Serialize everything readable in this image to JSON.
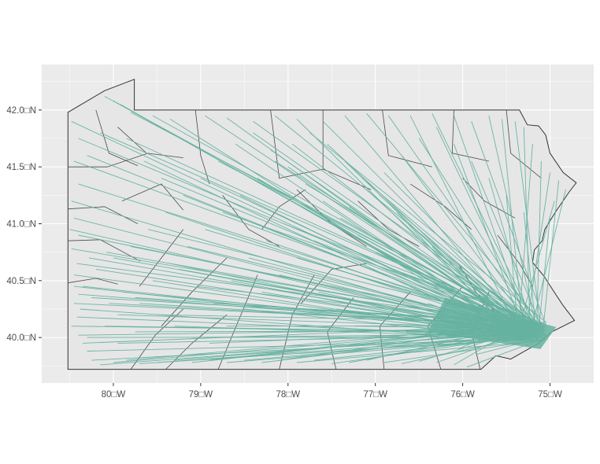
{
  "map": {
    "colors": {
      "panel_background": "#ebebeb",
      "grid_line": "#ffffff",
      "state_fill": "#e6e6e6",
      "boundary": "#333333",
      "flow_line": "#66b2a0",
      "tick_text": "#4d4d4d"
    },
    "x_axis": {
      "ticks": [
        {
          "value": -80,
          "label": "80□W"
        },
        {
          "value": -79,
          "label": "79□W"
        },
        {
          "value": -78,
          "label": "78□W"
        },
        {
          "value": -77,
          "label": "77□W"
        },
        {
          "value": -76,
          "label": "76□W"
        },
        {
          "value": -75,
          "label": "75□W"
        }
      ],
      "range": [
        -80.82,
        -74.5
      ]
    },
    "y_axis": {
      "ticks": [
        {
          "value": 40.0,
          "label": "40.0□N"
        },
        {
          "value": 40.5,
          "label": "40.5□N"
        },
        {
          "value": 41.0,
          "label": "41.0□N"
        },
        {
          "value": 41.5,
          "label": "41.5□N"
        },
        {
          "value": 42.0,
          "label": "42.0□N"
        }
      ],
      "range": [
        39.6,
        42.4
      ]
    },
    "destination": {
      "lon": -75.2,
      "lat": 40.05
    },
    "state_outline": [
      [
        -80.52,
        39.72
      ],
      [
        -75.79,
        39.72
      ],
      [
        -75.62,
        39.84
      ],
      [
        -75.45,
        39.81
      ],
      [
        -75.13,
        39.95
      ],
      [
        -74.98,
        40.05
      ],
      [
        -74.72,
        40.15
      ],
      [
        -74.85,
        40.28
      ],
      [
        -74.97,
        40.42
      ],
      [
        -75.07,
        40.54
      ],
      [
        -75.2,
        40.66
      ],
      [
        -75.18,
        40.77
      ],
      [
        -75.09,
        40.85
      ],
      [
        -75.06,
        40.95
      ],
      [
        -74.94,
        41.1
      ],
      [
        -74.78,
        41.28
      ],
      [
        -74.7,
        41.36
      ],
      [
        -74.85,
        41.45
      ],
      [
        -75.0,
        41.62
      ],
      [
        -75.05,
        41.78
      ],
      [
        -75.13,
        41.86
      ],
      [
        -75.26,
        41.87
      ],
      [
        -75.35,
        42.0
      ],
      [
        -79.76,
        42.0
      ],
      [
        -79.76,
        42.27
      ],
      [
        -80.1,
        42.17
      ],
      [
        -80.52,
        41.98
      ],
      [
        -80.52,
        39.72
      ]
    ],
    "county_lines": [
      [
        [
          -80.52,
          40.48
        ],
        [
          -80.2,
          40.52
        ],
        [
          -79.95,
          40.47
        ]
      ],
      [
        [
          -80.52,
          40.85
        ],
        [
          -80.15,
          40.86
        ],
        [
          -79.69,
          40.67
        ]
      ],
      [
        [
          -80.52,
          41.13
        ],
        [
          -80.1,
          41.15
        ],
        [
          -79.72,
          41.0
        ]
      ],
      [
        [
          -80.52,
          41.5
        ],
        [
          -80.07,
          41.5
        ],
        [
          -79.6,
          41.62
        ]
      ],
      [
        [
          -80.2,
          42.0
        ],
        [
          -80.05,
          41.62
        ],
        [
          -79.72,
          41.51
        ]
      ],
      [
        [
          -79.95,
          41.85
        ],
        [
          -79.62,
          41.62
        ],
        [
          -79.2,
          41.58
        ]
      ],
      [
        [
          -79.06,
          42.0
        ],
        [
          -79.0,
          41.6
        ],
        [
          -78.9,
          41.35
        ]
      ],
      [
        [
          -78.2,
          42.0
        ],
        [
          -78.1,
          41.4
        ],
        [
          -77.6,
          41.48
        ]
      ],
      [
        [
          -77.6,
          42.0
        ],
        [
          -77.6,
          41.48
        ],
        [
          -77.05,
          41.3
        ]
      ],
      [
        [
          -76.92,
          42.0
        ],
        [
          -76.85,
          41.6
        ],
        [
          -76.35,
          41.5
        ]
      ],
      [
        [
          -76.1,
          42.0
        ],
        [
          -76.12,
          41.62
        ],
        [
          -75.7,
          41.55
        ]
      ],
      [
        [
          -75.5,
          42.0
        ],
        [
          -75.45,
          41.62
        ],
        [
          -75.1,
          41.4
        ]
      ],
      [
        [
          -79.9,
          41.2
        ],
        [
          -79.45,
          41.35
        ],
        [
          -79.2,
          41.12
        ]
      ],
      [
        [
          -79.7,
          40.45
        ],
        [
          -79.45,
          40.7
        ],
        [
          -79.2,
          40.95
        ]
      ],
      [
        [
          -79.45,
          40.1
        ],
        [
          -79.1,
          40.4
        ],
        [
          -78.7,
          40.7
        ]
      ],
      [
        [
          -79.8,
          39.72
        ],
        [
          -79.52,
          40.02
        ],
        [
          -79.2,
          40.25
        ]
      ],
      [
        [
          -79.4,
          39.72
        ],
        [
          -79.1,
          39.95
        ],
        [
          -78.7,
          40.2
        ]
      ],
      [
        [
          -78.8,
          39.72
        ],
        [
          -78.62,
          40.05
        ],
        [
          -78.35,
          40.55
        ]
      ],
      [
        [
          -78.1,
          39.72
        ],
        [
          -77.95,
          40.2
        ],
        [
          -77.7,
          40.55
        ]
      ],
      [
        [
          -77.45,
          39.72
        ],
        [
          -77.55,
          40.05
        ],
        [
          -77.25,
          40.35
        ]
      ],
      [
        [
          -76.9,
          39.72
        ],
        [
          -76.95,
          40.1
        ],
        [
          -76.6,
          40.4
        ]
      ],
      [
        [
          -76.25,
          39.72
        ],
        [
          -76.4,
          40.1
        ],
        [
          -76.0,
          40.45
        ]
      ],
      [
        [
          -75.8,
          39.72
        ],
        [
          -75.9,
          40.05
        ],
        [
          -75.7,
          40.4
        ]
      ],
      [
        [
          -78.75,
          41.25
        ],
        [
          -78.45,
          40.95
        ],
        [
          -78.1,
          40.8
        ]
      ],
      [
        [
          -77.9,
          41.3
        ],
        [
          -77.5,
          41.0
        ],
        [
          -77.1,
          40.8
        ]
      ],
      [
        [
          -77.2,
          41.2
        ],
        [
          -76.85,
          40.95
        ],
        [
          -76.5,
          40.8
        ]
      ],
      [
        [
          -76.6,
          41.35
        ],
        [
          -76.2,
          41.15
        ],
        [
          -75.9,
          40.95
        ]
      ],
      [
        [
          -76.0,
          41.4
        ],
        [
          -75.75,
          41.2
        ],
        [
          -75.4,
          41.05
        ]
      ],
      [
        [
          -75.6,
          40.9
        ],
        [
          -75.35,
          40.65
        ],
        [
          -75.2,
          40.45
        ]
      ],
      [
        [
          -76.05,
          40.65
        ],
        [
          -75.85,
          40.4
        ],
        [
          -75.6,
          40.2
        ]
      ],
      [
        [
          -77.85,
          40.3
        ],
        [
          -77.5,
          40.6
        ],
        [
          -77.1,
          40.65
        ]
      ],
      [
        [
          -78.3,
          40.95
        ],
        [
          -78.1,
          41.15
        ],
        [
          -77.8,
          41.3
        ]
      ]
    ],
    "flow_origins": [
      [
        -80.1,
        42.12
      ],
      [
        -80.0,
        42.08
      ],
      [
        -79.92,
        42.05
      ],
      [
        -79.8,
        41.98
      ],
      [
        -79.55,
        41.95
      ],
      [
        -79.35,
        41.92
      ],
      [
        -78.95,
        41.95
      ],
      [
        -78.7,
        41.93
      ],
      [
        -78.4,
        41.9
      ],
      [
        -78.15,
        41.95
      ],
      [
        -77.9,
        41.92
      ],
      [
        -77.6,
        41.9
      ],
      [
        -77.35,
        41.95
      ],
      [
        -77.1,
        41.97
      ],
      [
        -76.85,
        41.95
      ],
      [
        -76.6,
        41.95
      ],
      [
        -76.35,
        41.97
      ],
      [
        -76.1,
        41.95
      ],
      [
        -75.9,
        41.9
      ],
      [
        -75.7,
        41.95
      ],
      [
        -75.55,
        41.92
      ],
      [
        -75.4,
        41.9
      ],
      [
        -75.3,
        41.85
      ],
      [
        -75.2,
        41.7
      ],
      [
        -75.1,
        41.55
      ],
      [
        -75.0,
        41.45
      ],
      [
        -74.9,
        41.38
      ],
      [
        -74.82,
        41.3
      ],
      [
        -74.95,
        41.2
      ],
      [
        -75.0,
        41.05
      ],
      [
        -80.48,
        41.9
      ],
      [
        -80.4,
        41.75
      ],
      [
        -80.45,
        41.55
      ],
      [
        -80.4,
        41.35
      ],
      [
        -80.48,
        41.2
      ],
      [
        -80.45,
        41.05
      ],
      [
        -80.4,
        40.9
      ],
      [
        -80.48,
        40.78
      ],
      [
        -80.42,
        40.65
      ],
      [
        -80.45,
        40.55
      ],
      [
        -80.35,
        40.45
      ],
      [
        -80.4,
        40.38
      ],
      [
        -80.45,
        40.3
      ],
      [
        -80.38,
        40.25
      ],
      [
        -80.42,
        40.18
      ],
      [
        -80.48,
        40.1
      ],
      [
        -80.4,
        40.02
      ],
      [
        -80.35,
        39.95
      ],
      [
        -80.3,
        39.88
      ],
      [
        -80.25,
        39.8
      ],
      [
        -80.15,
        39.76
      ],
      [
        -80.0,
        39.78
      ],
      [
        -79.85,
        39.8
      ],
      [
        -79.7,
        39.77
      ],
      [
        -79.5,
        39.78
      ],
      [
        -79.3,
        39.8
      ],
      [
        -79.1,
        39.78
      ],
      [
        -78.9,
        39.8
      ],
      [
        -78.7,
        39.78
      ],
      [
        -78.5,
        39.8
      ],
      [
        -78.3,
        39.78
      ],
      [
        -78.1,
        39.8
      ],
      [
        -77.9,
        39.78
      ],
      [
        -77.7,
        39.8
      ],
      [
        -77.5,
        39.77
      ],
      [
        -77.3,
        39.78
      ],
      [
        -77.1,
        39.8
      ],
      [
        -76.9,
        39.78
      ],
      [
        -76.7,
        39.77
      ],
      [
        -76.5,
        39.79
      ],
      [
        -76.3,
        39.78
      ],
      [
        -76.1,
        39.76
      ],
      [
        -75.95,
        39.74
      ],
      [
        -80.2,
        40.6
      ],
      [
        -80.0,
        40.7
      ],
      [
        -79.8,
        40.8
      ],
      [
        -79.6,
        40.95
      ],
      [
        -79.4,
        41.1
      ],
      [
        -79.2,
        41.25
      ],
      [
        -79.0,
        41.4
      ],
      [
        -78.8,
        41.55
      ],
      [
        -78.6,
        41.7
      ],
      [
        -78.4,
        41.8
      ],
      [
        -78.2,
        41.65
      ],
      [
        -78.0,
        41.5
      ],
      [
        -77.8,
        41.35
      ],
      [
        -77.6,
        41.2
      ],
      [
        -77.4,
        41.05
      ],
      [
        -77.2,
        40.9
      ],
      [
        -77.0,
        40.75
      ],
      [
        -76.8,
        40.6
      ],
      [
        -76.6,
        40.45
      ],
      [
        -76.4,
        40.3
      ],
      [
        -79.9,
        40.4
      ],
      [
        -79.7,
        40.3
      ],
      [
        -79.5,
        40.2
      ],
      [
        -79.3,
        40.1
      ],
      [
        -79.1,
        40.0
      ],
      [
        -78.9,
        39.95
      ],
      [
        -78.7,
        40.1
      ],
      [
        -78.5,
        40.25
      ],
      [
        -78.3,
        40.4
      ],
      [
        -78.1,
        40.55
      ],
      [
        -77.9,
        40.7
      ],
      [
        -77.7,
        40.85
      ],
      [
        -77.5,
        41.0
      ],
      [
        -77.3,
        41.15
      ],
      [
        -77.1,
        41.3
      ],
      [
        -76.9,
        41.45
      ],
      [
        -76.7,
        41.6
      ],
      [
        -76.5,
        41.75
      ],
      [
        -76.3,
        41.85
      ],
      [
        -76.1,
        41.7
      ],
      [
        -75.9,
        41.55
      ],
      [
        -75.7,
        41.4
      ],
      [
        -75.5,
        41.25
      ],
      [
        -75.3,
        41.1
      ],
      [
        -76.0,
        40.2
      ],
      [
        -75.8,
        40.1
      ],
      [
        -75.6,
        40.0
      ],
      [
        -80.3,
        40.0
      ],
      [
        -80.1,
        40.1
      ],
      [
        -79.95,
        40.2
      ],
      [
        -79.75,
        40.35
      ],
      [
        -79.55,
        40.5
      ],
      [
        -79.35,
        40.65
      ],
      [
        -79.15,
        40.8
      ],
      [
        -78.95,
        40.95
      ],
      [
        -78.75,
        41.1
      ],
      [
        -78.55,
        41.25
      ],
      [
        -78.35,
        41.4
      ],
      [
        -78.15,
        41.55
      ],
      [
        -77.95,
        41.7
      ],
      [
        -77.75,
        41.8
      ],
      [
        -77.55,
        41.7
      ],
      [
        -77.35,
        41.55
      ],
      [
        -77.15,
        41.4
      ],
      [
        -76.95,
        41.25
      ],
      [
        -76.75,
        41.1
      ],
      [
        -76.55,
        40.95
      ],
      [
        -76.35,
        40.8
      ],
      [
        -76.15,
        40.65
      ],
      [
        -75.95,
        40.5
      ],
      [
        -75.75,
        40.35
      ],
      [
        -80.5,
        40.95
      ],
      [
        -80.3,
        41.6
      ],
      [
        -80.15,
        41.8
      ],
      [
        -79.85,
        41.75
      ],
      [
        -79.65,
        41.55
      ],
      [
        -79.45,
        41.4
      ],
      [
        -79.25,
        40.6
      ],
      [
        -79.05,
        40.45
      ],
      [
        -78.85,
        40.3
      ],
      [
        -78.65,
        40.5
      ],
      [
        -78.45,
        40.7
      ],
      [
        -78.25,
        40.85
      ],
      [
        -78.05,
        41.0
      ],
      [
        -77.85,
        41.15
      ],
      [
        -77.65,
        40.4
      ],
      [
        -77.45,
        40.25
      ],
      [
        -77.25,
        40.1
      ],
      [
        -77.05,
        39.95
      ],
      [
        -76.85,
        40.2
      ],
      [
        -76.65,
        40.05
      ],
      [
        -76.45,
        39.9
      ],
      [
        -76.25,
        40.0
      ],
      [
        -76.05,
        39.9
      ],
      [
        -75.85,
        39.85
      ],
      [
        -79.95,
        39.95
      ],
      [
        -79.75,
        40.05
      ],
      [
        -80.05,
        40.3
      ],
      [
        -80.25,
        40.35
      ],
      [
        -80.45,
        40.45
      ],
      [
        -80.28,
        40.7
      ],
      [
        -80.08,
        40.75
      ]
    ]
  }
}
